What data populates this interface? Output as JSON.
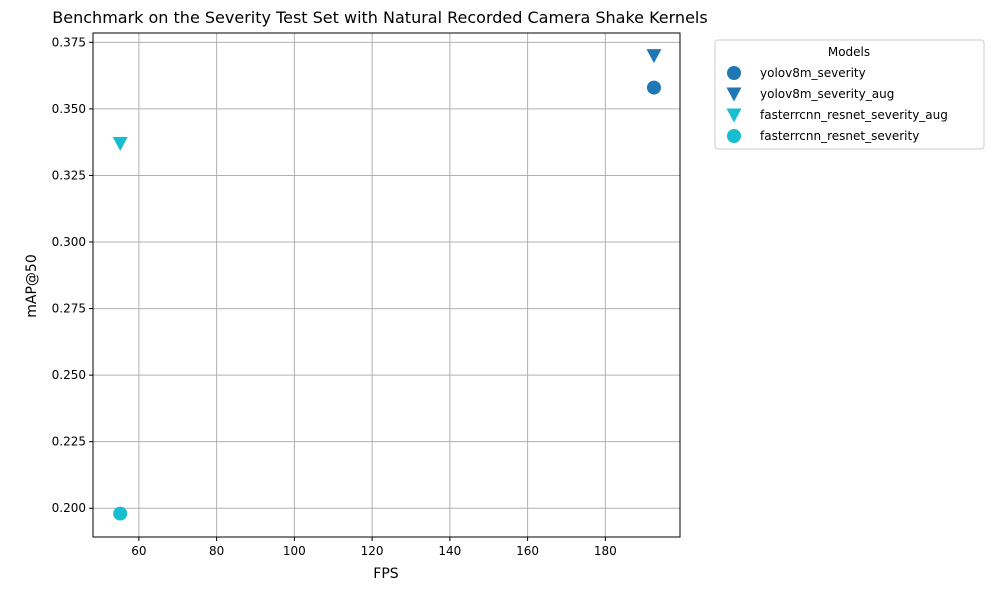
{
  "chart_data": {
    "type": "scatter",
    "title": "Benchmark on the Severity Test Set with Natural Recorded Camera Shake Kernels",
    "xlabel": "FPS",
    "ylabel": "mAP@50",
    "xlim": [
      48.2,
      199.2
    ],
    "ylim": [
      0.1892,
      0.3785
    ],
    "xticks": [
      60,
      80,
      100,
      120,
      140,
      160,
      180
    ],
    "yticks": [
      0.2,
      0.225,
      0.25,
      0.275,
      0.3,
      0.325,
      0.35,
      0.375
    ],
    "xtick_labels": [
      "60",
      "80",
      "100",
      "120",
      "140",
      "160",
      "180"
    ],
    "ytick_labels": [
      "0.200",
      "0.225",
      "0.250",
      "0.275",
      "0.300",
      "0.325",
      "0.350",
      "0.375"
    ],
    "grid": true,
    "legend_title": "Models",
    "legend_position": "outside-right-top",
    "series": [
      {
        "name": "yolov8m_severity",
        "marker": "circle",
        "color": "#1f77b4",
        "points": [
          {
            "x": 192.5,
            "y": 0.358
          }
        ]
      },
      {
        "name": "yolov8m_severity_aug",
        "marker": "triangle-down",
        "color": "#1f77b4",
        "points": [
          {
            "x": 192.5,
            "y": 0.37
          }
        ]
      },
      {
        "name": "fasterrcnn_resnet_severity_aug",
        "marker": "triangle-down",
        "color": "#17becf",
        "points": [
          {
            "x": 55.2,
            "y": 0.337
          }
        ]
      },
      {
        "name": "fasterrcnn_resnet_severity",
        "marker": "circle",
        "color": "#17becf",
        "points": [
          {
            "x": 55.2,
            "y": 0.198
          }
        ]
      }
    ]
  }
}
